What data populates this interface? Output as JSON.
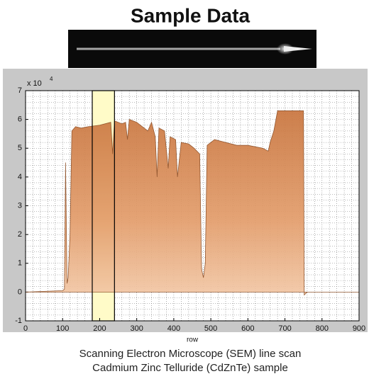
{
  "chart_data": {
    "type": "area",
    "title": "Sample Data",
    "caption": [
      "Scanning Electron Microscope (SEM) line scan",
      "Cadmium Zinc Telluride (CdZnTe) sample"
    ],
    "xlabel": "row",
    "y_multiplier": "x 10",
    "y_exponent": "4",
    "color": "#d98e58",
    "highlight_color": "#fffbc8",
    "highlight_range": [
      180,
      240
    ],
    "grid": true,
    "xlim": [
      0,
      900
    ],
    "xticks": [
      0,
      100,
      200,
      300,
      400,
      500,
      600,
      700,
      800,
      900
    ],
    "ylim": [
      -1,
      7
    ],
    "yticks": [
      -1,
      0,
      1,
      2,
      3,
      4,
      5,
      6,
      7
    ],
    "x": [
      0,
      100,
      105,
      108,
      112,
      115,
      120,
      125,
      135,
      150,
      170,
      200,
      230,
      235,
      240,
      260,
      270,
      275,
      280,
      300,
      320,
      330,
      340,
      350,
      355,
      360,
      375,
      385,
      390,
      405,
      410,
      420,
      440,
      455,
      470,
      475,
      480,
      485,
      490,
      510,
      540,
      570,
      600,
      640,
      655,
      660,
      670,
      680,
      750,
      752,
      760,
      900
    ],
    "values": [
      0,
      0.05,
      0.1,
      4.5,
      0.3,
      0.5,
      2,
      5.6,
      5.75,
      5.7,
      5.75,
      5.8,
      5.9,
      4.8,
      5.95,
      5.85,
      5.9,
      5.3,
      6.0,
      5.9,
      5.7,
      5.6,
      5.9,
      5.4,
      4.0,
      5.7,
      5.6,
      4.3,
      5.4,
      5.3,
      4.0,
      5.2,
      5.15,
      5.0,
      4.8,
      0.8,
      0.5,
      1.0,
      5.1,
      5.3,
      5.2,
      5.1,
      5.1,
      5.0,
      4.9,
      5.2,
      5.6,
      6.3,
      6.3,
      -0.1,
      0,
      0
    ]
  }
}
